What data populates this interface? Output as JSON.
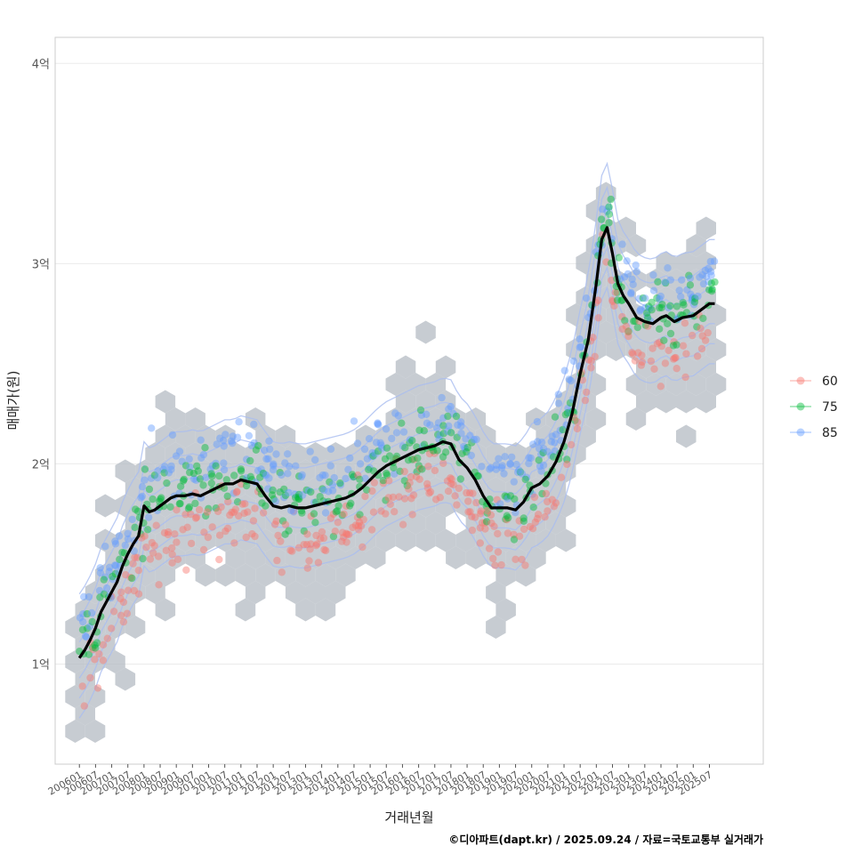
{
  "chart_data": {
    "type": "scatter",
    "xlabel": "거래년월",
    "ylabel": "매매가(원)",
    "caption": "©디아파트(dapt.kr) / 2025.09.24 / 자료=국토교통부 실거래가",
    "x_range": [
      "2005-04",
      "2027-03"
    ],
    "ylim": [
      0.5,
      4.13
    ],
    "y_ticks": [
      {
        "value": 1,
        "label": "1억"
      },
      {
        "value": 2,
        "label": "2억"
      },
      {
        "value": 3,
        "label": "3억"
      },
      {
        "value": 4,
        "label": "4억"
      }
    ],
    "x_ticks": [
      "200601",
      "200607",
      "200701",
      "200707",
      "200801",
      "200807",
      "200901",
      "200907",
      "201001",
      "201007",
      "201101",
      "201107",
      "201201",
      "201207",
      "201301",
      "201307",
      "201401",
      "201407",
      "201501",
      "201507",
      "201601",
      "201607",
      "201701",
      "201707",
      "201801",
      "201807",
      "201901",
      "201907",
      "202001",
      "202007",
      "202101",
      "202107",
      "202201",
      "202207",
      "202301",
      "202307",
      "202401",
      "202407",
      "202501",
      "202507"
    ],
    "grid": true,
    "legend": {
      "position": "right",
      "entries": [
        {
          "name": "60",
          "color": "#F8766D"
        },
        {
          "name": "75",
          "color": "#00BA38"
        },
        {
          "name": "85",
          "color": "#619CFF"
        }
      ]
    },
    "hexbin_color": "#B4BBC3",
    "contour_color": "#A9BDF0",
    "trend_line_color": "#000000",
    "trend_line": [
      [
        "2006-01",
        1.03
      ],
      [
        "2006-03",
        1.07
      ],
      [
        "2006-05",
        1.12
      ],
      [
        "2006-07",
        1.18
      ],
      [
        "2006-09",
        1.26
      ],
      [
        "2006-11",
        1.31
      ],
      [
        "2007-01",
        1.36
      ],
      [
        "2007-03",
        1.41
      ],
      [
        "2007-05",
        1.49
      ],
      [
        "2007-07",
        1.55
      ],
      [
        "2007-09",
        1.6
      ],
      [
        "2007-11",
        1.64
      ],
      [
        "2008-01",
        1.79
      ],
      [
        "2008-03",
        1.76
      ],
      [
        "2008-05",
        1.77
      ],
      [
        "2008-07",
        1.79
      ],
      [
        "2008-09",
        1.81
      ],
      [
        "2008-11",
        1.83
      ],
      [
        "2009-01",
        1.84
      ],
      [
        "2009-04",
        1.84
      ],
      [
        "2009-07",
        1.85
      ],
      [
        "2009-10",
        1.84
      ],
      [
        "2010-01",
        1.86
      ],
      [
        "2010-04",
        1.88
      ],
      [
        "2010-07",
        1.9
      ],
      [
        "2010-10",
        1.9
      ],
      [
        "2011-01",
        1.92
      ],
      [
        "2011-04",
        1.91
      ],
      [
        "2011-07",
        1.9
      ],
      [
        "2011-10",
        1.84
      ],
      [
        "2012-01",
        1.79
      ],
      [
        "2012-04",
        1.78
      ],
      [
        "2012-07",
        1.79
      ],
      [
        "2012-10",
        1.78
      ],
      [
        "2013-01",
        1.78
      ],
      [
        "2013-04",
        1.79
      ],
      [
        "2013-07",
        1.8
      ],
      [
        "2013-10",
        1.81
      ],
      [
        "2014-01",
        1.82
      ],
      [
        "2014-04",
        1.83
      ],
      [
        "2014-07",
        1.85
      ],
      [
        "2014-10",
        1.88
      ],
      [
        "2015-01",
        1.92
      ],
      [
        "2015-04",
        1.96
      ],
      [
        "2015-07",
        1.99
      ],
      [
        "2015-10",
        2.01
      ],
      [
        "2016-01",
        2.03
      ],
      [
        "2016-04",
        2.05
      ],
      [
        "2016-07",
        2.07
      ],
      [
        "2016-10",
        2.08
      ],
      [
        "2017-01",
        2.09
      ],
      [
        "2017-04",
        2.11
      ],
      [
        "2017-07",
        2.1
      ],
      [
        "2017-10",
        2.02
      ],
      [
        "2018-01",
        1.98
      ],
      [
        "2018-04",
        1.92
      ],
      [
        "2018-07",
        1.84
      ],
      [
        "2018-10",
        1.78
      ],
      [
        "2019-01",
        1.78
      ],
      [
        "2019-04",
        1.78
      ],
      [
        "2019-07",
        1.77
      ],
      [
        "2019-10",
        1.81
      ],
      [
        "2020-01",
        1.88
      ],
      [
        "2020-04",
        1.9
      ],
      [
        "2020-07",
        1.94
      ],
      [
        "2020-10",
        2.01
      ],
      [
        "2021-01",
        2.11
      ],
      [
        "2021-04",
        2.25
      ],
      [
        "2021-07",
        2.45
      ],
      [
        "2021-10",
        2.62
      ],
      [
        "2022-01",
        2.9
      ],
      [
        "2022-03",
        3.12
      ],
      [
        "2022-05",
        3.18
      ],
      [
        "2022-07",
        3.05
      ],
      [
        "2022-09",
        2.9
      ],
      [
        "2022-11",
        2.84
      ],
      [
        "2023-01",
        2.8
      ],
      [
        "2023-04",
        2.73
      ],
      [
        "2023-07",
        2.71
      ],
      [
        "2023-10",
        2.7
      ],
      [
        "2024-01",
        2.73
      ],
      [
        "2024-03",
        2.74
      ],
      [
        "2024-06",
        2.71
      ],
      [
        "2024-09",
        2.73
      ],
      [
        "2025-01",
        2.74
      ],
      [
        "2025-04",
        2.77
      ],
      [
        "2025-07",
        2.8
      ],
      [
        "2025-09",
        2.8
      ]
    ]
  }
}
